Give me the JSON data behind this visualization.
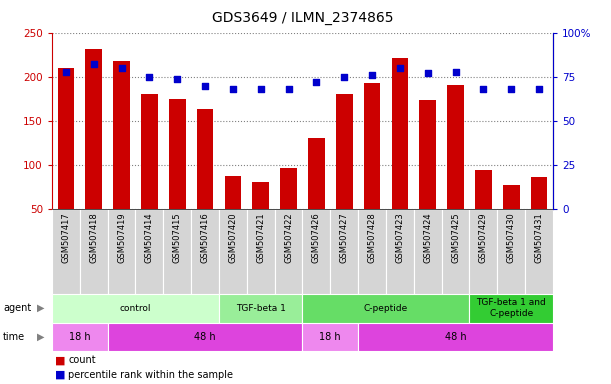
{
  "title": "GDS3649 / ILMN_2374865",
  "samples": [
    "GSM507417",
    "GSM507418",
    "GSM507419",
    "GSM507414",
    "GSM507415",
    "GSM507416",
    "GSM507420",
    "GSM507421",
    "GSM507422",
    "GSM507426",
    "GSM507427",
    "GSM507428",
    "GSM507423",
    "GSM507424",
    "GSM507425",
    "GSM507429",
    "GSM507430",
    "GSM507431"
  ],
  "counts": [
    210,
    232,
    218,
    180,
    175,
    163,
    88,
    81,
    97,
    131,
    181,
    193,
    221,
    174,
    191,
    95,
    78,
    86
  ],
  "percentile_ranks": [
    78,
    82,
    80,
    75,
    74,
    70,
    68,
    68,
    68,
    72,
    75,
    76,
    80,
    77,
    78,
    68,
    68,
    68
  ],
  "bar_color": "#cc0000",
  "dot_color": "#0000cc",
  "agent_groups": [
    {
      "label": "control",
      "start": 0,
      "end": 6,
      "color": "#ccffcc"
    },
    {
      "label": "TGF-beta 1",
      "start": 6,
      "end": 9,
      "color": "#99ee99"
    },
    {
      "label": "C-peptide",
      "start": 9,
      "end": 15,
      "color": "#66dd66"
    },
    {
      "label": "TGF-beta 1 and\nC-peptide",
      "start": 15,
      "end": 18,
      "color": "#33cc33"
    }
  ],
  "time_groups": [
    {
      "label": "18 h",
      "start": 0,
      "end": 2,
      "color": "#ee88ee"
    },
    {
      "label": "48 h",
      "start": 2,
      "end": 9,
      "color": "#dd44dd"
    },
    {
      "label": "18 h",
      "start": 9,
      "end": 11,
      "color": "#ee88ee"
    },
    {
      "label": "48 h",
      "start": 11,
      "end": 18,
      "color": "#dd44dd"
    }
  ]
}
